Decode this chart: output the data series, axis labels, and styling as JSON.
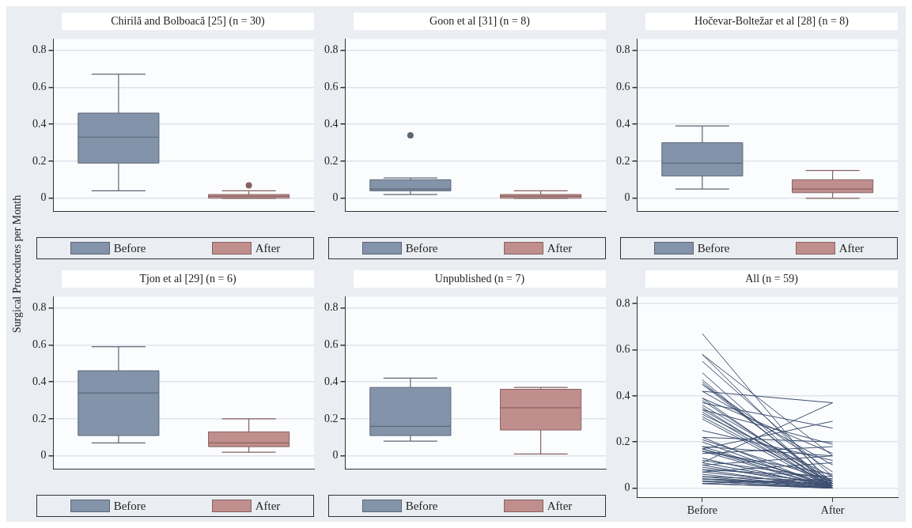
{
  "chart_data": [
    {
      "type": "box",
      "title": "Chirilă and Bolboacă [25] (n = 30)",
      "ylabel": "Surgical Procedures per Month",
      "categories": [
        null
      ],
      "ylim": [
        -0.07,
        0.86
      ],
      "yticks": [
        0,
        0.2,
        0.4,
        0.6,
        0.8
      ],
      "grid": "y",
      "legend": "bottom",
      "series": [
        {
          "name": "Before",
          "color": "#8393a9",
          "boxes": [
            {
              "low": 0.04,
              "q1": 0.19,
              "median": 0.33,
              "q3": 0.46,
              "high": 0.67
            }
          ]
        },
        {
          "name": "After",
          "color": "#c08e8c",
          "boxes": [
            {
              "low": 0,
              "q1": 0,
              "median": 0.01,
              "q3": 0.02,
              "high": 0.04,
              "outliers": [
                0.07
              ]
            }
          ]
        }
      ]
    },
    {
      "type": "box",
      "title": "Goon et al [31] (n = 8)",
      "categories": [
        null
      ],
      "ylim": [
        -0.07,
        0.86
      ],
      "yticks": [
        0,
        0.2,
        0.4,
        0.6,
        0.8
      ],
      "grid": "y",
      "legend": "bottom",
      "series": [
        {
          "name": "Before",
          "color": "#8393a9",
          "boxes": [
            {
              "low": 0.02,
              "q1": 0.04,
              "median": 0.05,
              "q3": 0.1,
              "high": 0.11,
              "outliers": [
                0.34
              ]
            }
          ]
        },
        {
          "name": "After",
          "color": "#c08e8c",
          "boxes": [
            {
              "low": 0,
              "q1": 0,
              "median": 0.01,
              "q3": 0.02,
              "high": 0.04
            }
          ]
        }
      ]
    },
    {
      "type": "box",
      "title": "Hočevar-Boltežar et al [28] (n = 8)",
      "categories": [
        null
      ],
      "ylim": [
        -0.07,
        0.86
      ],
      "yticks": [
        0,
        0.2,
        0.4,
        0.6,
        0.8
      ],
      "grid": "y",
      "legend": "bottom",
      "series": [
        {
          "name": "Before",
          "color": "#8393a9",
          "boxes": [
            {
              "low": 0.05,
              "q1": 0.12,
              "median": 0.19,
              "q3": 0.3,
              "high": 0.39
            }
          ]
        },
        {
          "name": "After",
          "color": "#c08e8c",
          "boxes": [
            {
              "low": 0,
              "q1": 0.03,
              "median": 0.05,
              "q3": 0.1,
              "high": 0.15
            }
          ]
        }
      ]
    },
    {
      "type": "box",
      "title": "Tjon et al [29] (n = 6)",
      "categories": [
        null
      ],
      "ylim": [
        -0.07,
        0.86
      ],
      "yticks": [
        0,
        0.2,
        0.4,
        0.6,
        0.8
      ],
      "grid": "y",
      "legend": "bottom",
      "series": [
        {
          "name": "Before",
          "color": "#8393a9",
          "boxes": [
            {
              "low": 0.07,
              "q1": 0.11,
              "median": 0.34,
              "q3": 0.46,
              "high": 0.59
            }
          ]
        },
        {
          "name": "After",
          "color": "#c08e8c",
          "boxes": [
            {
              "low": 0.02,
              "q1": 0.05,
              "median": 0.07,
              "q3": 0.13,
              "high": 0.2
            }
          ]
        }
      ]
    },
    {
      "type": "box",
      "title": "Unpublished (n = 7)",
      "categories": [
        null
      ],
      "ylim": [
        -0.07,
        0.86
      ],
      "yticks": [
        0,
        0.2,
        0.4,
        0.6,
        0.8
      ],
      "grid": "y",
      "legend": "bottom",
      "series": [
        {
          "name": "Before",
          "color": "#8393a9",
          "boxes": [
            {
              "low": 0.08,
              "q1": 0.11,
              "median": 0.16,
              "q3": 0.37,
              "high": 0.42
            }
          ]
        },
        {
          "name": "After",
          "color": "#c08e8c",
          "boxes": [
            {
              "low": 0.01,
              "q1": 0.14,
              "median": 0.26,
              "q3": 0.36,
              "high": 0.37
            }
          ]
        }
      ]
    },
    {
      "type": "line",
      "title": "All (n = 59)",
      "categories": [
        "Before",
        "After"
      ],
      "color": "#3d4f70",
      "ylim": [
        -0.04,
        0.83
      ],
      "yticks": [
        0,
        0.2,
        0.4,
        0.6,
        0.8
      ],
      "grid": "y",
      "series": [
        {
          "values": [
            0.67,
            0
          ]
        },
        {
          "values": [
            0.58,
            0.02
          ]
        },
        {
          "values": [
            0.58,
            0.14
          ]
        },
        {
          "values": [
            0.55,
            0.05
          ]
        },
        {
          "values": [
            0.5,
            0
          ]
        },
        {
          "values": [
            0.47,
            0
          ]
        },
        {
          "values": [
            0.46,
            0.01
          ]
        },
        {
          "values": [
            0.45,
            0.02
          ]
        },
        {
          "values": [
            0.45,
            0.07
          ]
        },
        {
          "values": [
            0.42,
            0.37
          ]
        },
        {
          "values": [
            0.42,
            0.1
          ]
        },
        {
          "values": [
            0.39,
            0.15
          ]
        },
        {
          "values": [
            0.39,
            0
          ]
        },
        {
          "values": [
            0.38,
            0.01
          ]
        },
        {
          "values": [
            0.37,
            0.26
          ]
        },
        {
          "values": [
            0.36,
            0.03
          ]
        },
        {
          "values": [
            0.35,
            0
          ]
        },
        {
          "values": [
            0.34,
            0.02
          ]
        },
        {
          "values": [
            0.34,
            0.19
          ]
        },
        {
          "values": [
            0.33,
            0
          ]
        },
        {
          "values": [
            0.32,
            0.05
          ]
        },
        {
          "values": [
            0.31,
            0.01
          ]
        },
        {
          "values": [
            0.3,
            0
          ]
        },
        {
          "values": [
            0.25,
            0.12
          ]
        },
        {
          "values": [
            0.22,
            0
          ]
        },
        {
          "values": [
            0.22,
            0.2
          ]
        },
        {
          "values": [
            0.21,
            0.03
          ]
        },
        {
          "values": [
            0.2,
            0
          ]
        },
        {
          "values": [
            0.18,
            0.01
          ]
        },
        {
          "values": [
            0.18,
            0.14
          ]
        },
        {
          "values": [
            0.17,
            0
          ]
        },
        {
          "values": [
            0.17,
            0.29
          ]
        },
        {
          "values": [
            0.17,
            0.02
          ]
        },
        {
          "values": [
            0.16,
            0
          ]
        },
        {
          "values": [
            0.16,
            0.06
          ]
        },
        {
          "values": [
            0.15,
            0.18
          ]
        },
        {
          "values": [
            0.13,
            0
          ]
        },
        {
          "values": [
            0.12,
            0.04
          ]
        },
        {
          "values": [
            0.11,
            0.37
          ]
        },
        {
          "values": [
            0.11,
            0.01
          ]
        },
        {
          "values": [
            0.1,
            0.14
          ]
        },
        {
          "values": [
            0.1,
            0
          ]
        },
        {
          "values": [
            0.09,
            0.02
          ]
        },
        {
          "values": [
            0.08,
            0.05
          ]
        },
        {
          "values": [
            0.08,
            0
          ]
        },
        {
          "values": [
            0.07,
            0.01
          ]
        },
        {
          "values": [
            0.07,
            0.11
          ]
        },
        {
          "values": [
            0.06,
            0
          ]
        },
        {
          "values": [
            0.05,
            0.03
          ]
        },
        {
          "values": [
            0.05,
            0
          ]
        },
        {
          "values": [
            0.04,
            0.02
          ]
        },
        {
          "values": [
            0.04,
            0
          ]
        },
        {
          "values": [
            0.04,
            0.01
          ]
        },
        {
          "values": [
            0.03,
            0
          ]
        },
        {
          "values": [
            0.03,
            0.02
          ]
        },
        {
          "values": [
            0.03,
            0
          ]
        },
        {
          "values": [
            0.02,
            0
          ]
        },
        {
          "values": [
            0.02,
            0.04
          ]
        },
        {
          "values": [
            0.02,
            0
          ]
        }
      ]
    }
  ]
}
